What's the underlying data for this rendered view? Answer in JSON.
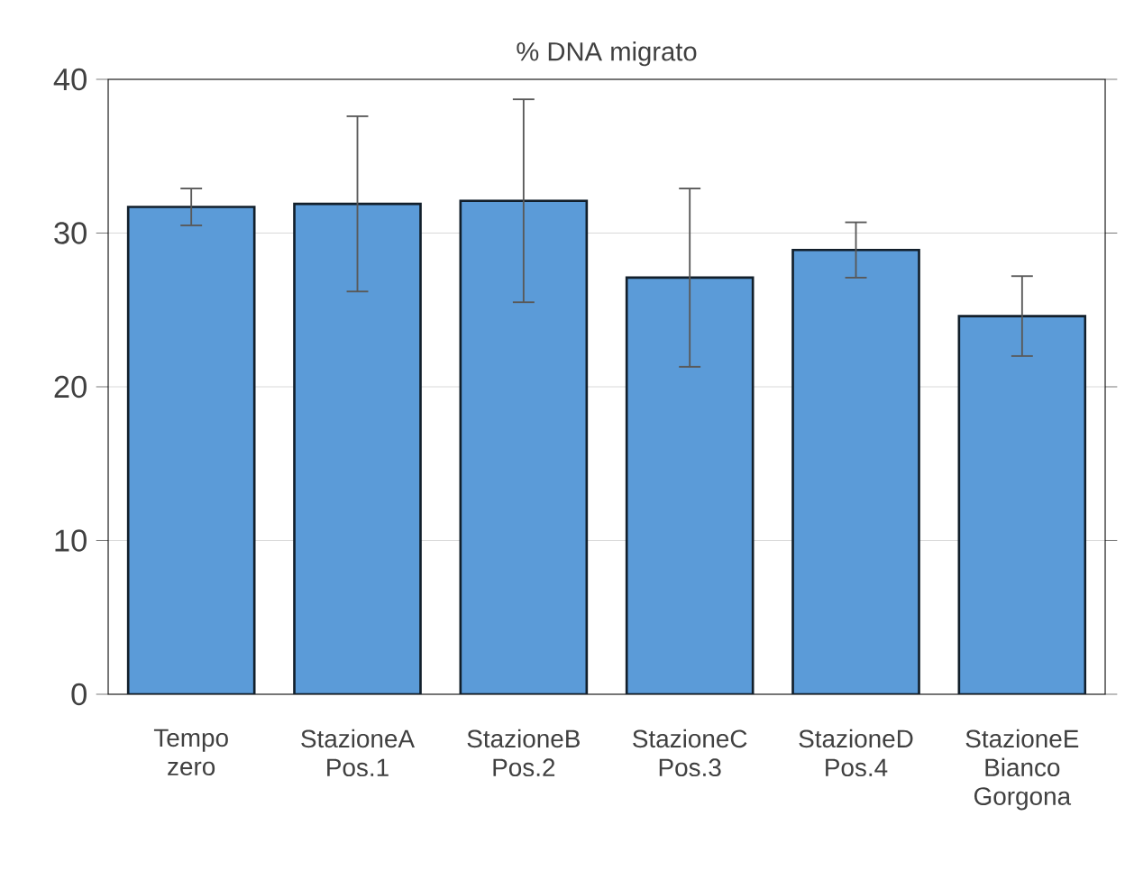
{
  "chart_data": {
    "type": "bar",
    "title": "%  DNA migrato",
    "categories": [
      "Tempo zero",
      "StazioneA Pos.1",
      "StazioneB Pos.2",
      "StazioneC Pos.3",
      "StazioneD Pos.4",
      "StazioneE Bianco Gorgona"
    ],
    "values": [
      31.7,
      31.9,
      32.1,
      27.1,
      28.9,
      24.6
    ],
    "errors": [
      1.2,
      5.7,
      6.6,
      5.8,
      1.8,
      2.6
    ],
    "color": "#5b9bd8",
    "ylim": [
      0,
      40
    ],
    "yticks": [
      0,
      10,
      20,
      30,
      40
    ],
    "grid": "y"
  }
}
